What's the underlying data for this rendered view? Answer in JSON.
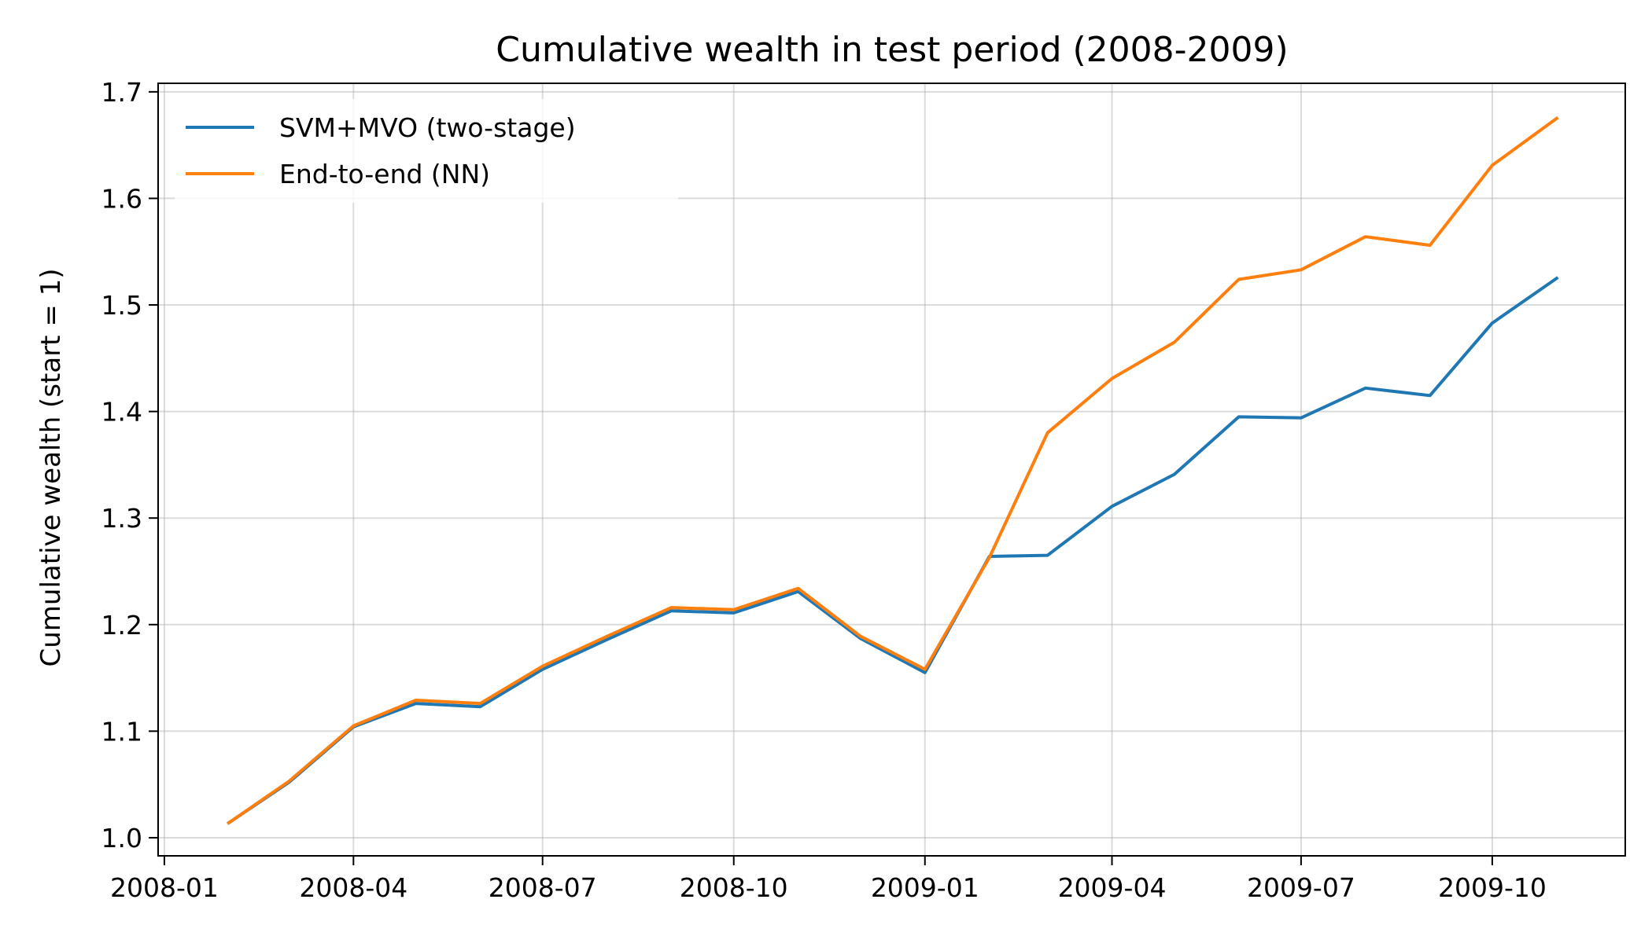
{
  "chart_data": {
    "type": "line",
    "title": "Cumulative wealth in test period (2008-2009)",
    "xlabel": "",
    "ylabel": "Cumulative wealth (start = 1)",
    "x": [
      "2008-02-01",
      "2008-03-01",
      "2008-04-01",
      "2008-05-01",
      "2008-06-01",
      "2008-07-01",
      "2008-08-01",
      "2008-09-01",
      "2008-10-01",
      "2008-11-01",
      "2008-12-01",
      "2009-01-01",
      "2009-02-01",
      "2009-03-01",
      "2009-04-01",
      "2009-05-01",
      "2009-06-01",
      "2009-07-01",
      "2009-08-01",
      "2009-09-01",
      "2009-10-01",
      "2009-11-01"
    ],
    "xlim": [
      "2007-12-29",
      "2009-12-04"
    ],
    "xticks": [
      "2008-01",
      "2008-04",
      "2008-07",
      "2008-10",
      "2009-01",
      "2009-04",
      "2009-07",
      "2009-10"
    ],
    "ylim": [
      0.983,
      1.708
    ],
    "yticks": [
      "1.0",
      "1.1",
      "1.2",
      "1.3",
      "1.4",
      "1.5",
      "1.6",
      "1.7"
    ],
    "grid": true,
    "legend": "top-left",
    "series": [
      {
        "name": "SVM+MVO (two-stage)",
        "color": "#1f77b4",
        "values": [
          1.014,
          1.052,
          1.104,
          1.126,
          1.123,
          1.158,
          1.186,
          1.213,
          1.211,
          1.231,
          1.187,
          1.155,
          1.264,
          1.265,
          1.311,
          1.341,
          1.395,
          1.394,
          1.422,
          1.415,
          1.483,
          1.525
        ]
      },
      {
        "name": "End-to-end (NN)",
        "color": "#ff7f0e",
        "values": [
          1.014,
          1.053,
          1.105,
          1.129,
          1.126,
          1.161,
          1.189,
          1.216,
          1.214,
          1.234,
          1.189,
          1.158,
          1.263,
          1.38,
          1.431,
          1.465,
          1.524,
          1.533,
          1.564,
          1.556,
          1.631,
          1.675
        ]
      }
    ]
  }
}
